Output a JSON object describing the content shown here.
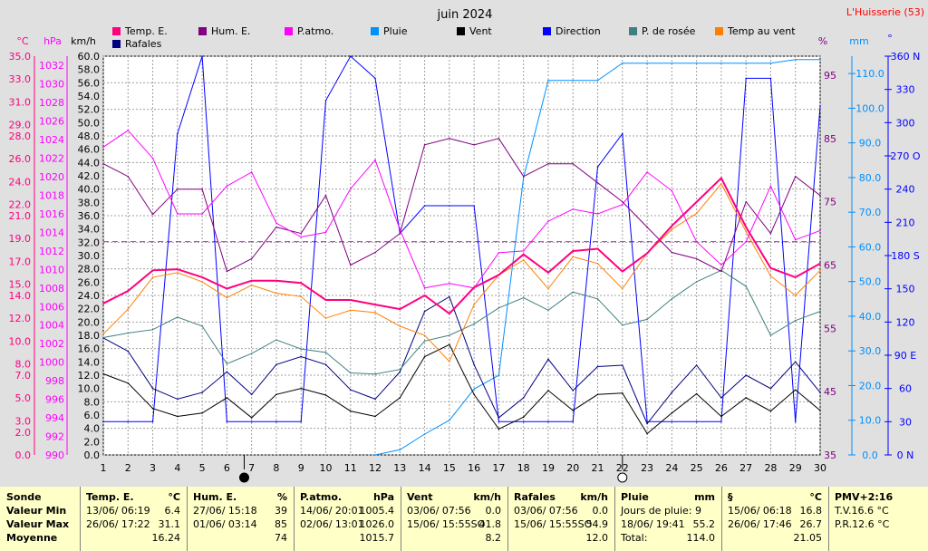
{
  "title": "juin 2024",
  "station": "L'Huisserie (53)",
  "colors": {
    "temp": "#ff0080",
    "hum": "#800080",
    "patmo": "#ff00ff",
    "pluie": "#0090ff",
    "vent": "#000000",
    "rafales": "#000080",
    "direction": "#0000ff",
    "rosee": "#408080",
    "tempvent": "#ff8000"
  },
  "legend": [
    {
      "key": "temp",
      "label": "Temp. E."
    },
    {
      "key": "hum",
      "label": "Hum. E."
    },
    {
      "key": "patmo",
      "label": "P.atmo."
    },
    {
      "key": "pluie",
      "label": "Pluie"
    },
    {
      "key": "vent",
      "label": "Vent"
    },
    {
      "key": "direction",
      "label": "Direction"
    },
    {
      "key": "rosee",
      "label": "P. de rosée"
    },
    {
      "key": "tempvent",
      "label": "Temp au vent"
    },
    {
      "key": "rafales",
      "label": "Rafales"
    }
  ],
  "chart_data": {
    "type": "line",
    "title": "juin 2024",
    "x": [
      1,
      2,
      3,
      4,
      5,
      6,
      7,
      8,
      9,
      10,
      11,
      12,
      13,
      14,
      15,
      16,
      17,
      18,
      19,
      20,
      21,
      22,
      23,
      24,
      25,
      26,
      27,
      28,
      29,
      30
    ],
    "axes": {
      "temp": {
        "unit": "°C",
        "range": [
          0,
          35
        ],
        "ticks": [
          "0.0",
          "2.0",
          "3.0",
          "5.0",
          "7.0",
          "8.0",
          "10.0",
          "12.0",
          "14.0",
          "15.0",
          "17.0",
          "19.0",
          "21.0",
          "22.0",
          "24.0",
          "26.0",
          "28.0",
          "29.0",
          "31.0",
          "33.0",
          "35.0"
        ]
      },
      "patmo": {
        "unit": "hPa",
        "range": [
          990,
          1033
        ],
        "ticks": [
          "990",
          "992",
          "994",
          "996",
          "998",
          "1000",
          "1002",
          "1004",
          "1006",
          "1008",
          "1010",
          "1012",
          "1014",
          "1016",
          "1018",
          "1020",
          "1022",
          "1024",
          "1026",
          "1028",
          "1030",
          "1032"
        ]
      },
      "vent": {
        "unit": "km/h",
        "range": [
          0,
          60
        ],
        "step": 2
      },
      "hum": {
        "unit": "%",
        "range": [
          35,
          98
        ],
        "ticks": [
          "35",
          "45",
          "55",
          "65",
          "75",
          "85",
          "95"
        ]
      },
      "pluie": {
        "unit": "mm",
        "range": [
          0,
          115
        ],
        "ticks": [
          "0.0",
          "10.0",
          "20.0",
          "30.0",
          "40.0",
          "50.0",
          "60.0",
          "70.0",
          "80.0",
          "90.0",
          "100.0",
          "110.0"
        ]
      },
      "direction": {
        "unit": "°",
        "range": [
          0,
          360
        ],
        "ticks": [
          "0 N",
          "30",
          "60",
          "90 E",
          "120",
          "150",
          "180 S",
          "210",
          "240",
          "270 O",
          "300",
          "330",
          "360 N"
        ]
      }
    },
    "moon_marks": [
      {
        "day": 6.7,
        "phase": "new"
      },
      {
        "day": 22,
        "phase": "full"
      }
    ],
    "series": [
      {
        "key": "temp",
        "name": "Temp. E.",
        "axis": "temp",
        "values": [
          13.3,
          14.4,
          16.2,
          16.3,
          15.6,
          14.6,
          15.3,
          15.3,
          15.1,
          13.6,
          13.6,
          13.2,
          12.8,
          14.0,
          12.4,
          14.7,
          15.8,
          17.6,
          16.0,
          17.9,
          18.1,
          16.1,
          17.7,
          20.1,
          22.2,
          24.3,
          20.0,
          16.4,
          15.6,
          16.8
        ]
      },
      {
        "key": "hum",
        "name": "Hum. E.",
        "axis": "hum",
        "values": [
          81,
          79,
          73,
          77,
          77,
          64,
          66,
          71,
          70,
          76,
          65,
          67,
          70,
          84,
          85,
          84,
          85,
          79,
          81,
          81,
          78,
          75,
          71,
          67,
          66,
          64,
          75,
          70,
          79,
          76
        ]
      },
      {
        "key": "patmo",
        "name": "P.atmo.",
        "axis": "patmo",
        "values": [
          1023.2,
          1025.0,
          1022.0,
          1016.0,
          1016.0,
          1019.0,
          1020.5,
          1015.0,
          1013.5,
          1014.0,
          1018.7,
          1021.8,
          1014.3,
          1008.0,
          1008.5,
          1008.0,
          1011.8,
          1012.0,
          1015.2,
          1016.5,
          1016.0,
          1017.0,
          1020.5,
          1018.5,
          1013.0,
          1010.5,
          1013.0,
          1019.0,
          1013.2,
          1014.2
        ]
      },
      {
        "key": "pluie",
        "name": "Pluie",
        "axis": "pluie",
        "values": [
          null,
          null,
          null,
          null,
          null,
          null,
          null,
          null,
          null,
          null,
          null,
          0.0,
          1.5,
          6.0,
          10.0,
          19.0,
          23.0,
          80.0,
          108.0,
          108.0,
          108.0,
          113.0,
          113.0,
          113.0,
          113.0,
          113.0,
          113.0,
          113.0,
          114.0,
          114.0
        ]
      },
      {
        "key": "vent",
        "name": "Vent",
        "axis": "vent",
        "values": [
          12.2,
          10.8,
          7.0,
          5.8,
          6.3,
          8.6,
          5.6,
          9.1,
          10.0,
          9.0,
          6.6,
          5.8,
          8.6,
          14.8,
          16.6,
          9.1,
          3.9,
          5.7,
          9.7,
          6.7,
          9.1,
          9.3,
          3.2,
          6.3,
          9.2,
          5.8,
          8.6,
          6.6,
          9.8,
          6.7
        ]
      },
      {
        "key": "rafales",
        "name": "Rafales",
        "axis": "vent",
        "values": [
          17.6,
          15.6,
          10.0,
          8.4,
          9.4,
          12.5,
          9.1,
          13.6,
          14.8,
          13.6,
          9.8,
          8.4,
          12.5,
          21.6,
          23.8,
          13.6,
          5.6,
          8.6,
          14.4,
          9.7,
          13.3,
          13.5,
          4.7,
          9.4,
          13.5,
          8.6,
          12.0,
          10.0,
          14.0,
          9.4
        ]
      },
      {
        "key": "direction",
        "name": "Direction",
        "axis": "direction",
        "values": [
          30,
          30,
          30,
          290,
          360,
          30,
          30,
          30,
          30,
          320,
          360,
          340,
          200,
          225,
          225,
          225,
          30,
          30,
          30,
          30,
          260,
          290,
          30,
          30,
          30,
          30,
          340,
          340,
          30,
          315
        ]
      },
      {
        "key": "rosee",
        "name": "P. de rosée",
        "axis": "temp",
        "values": [
          10.3,
          10.7,
          11.0,
          12.1,
          11.3,
          8.0,
          8.9,
          10.1,
          9.3,
          9.0,
          7.2,
          7.1,
          7.5,
          10.0,
          10.5,
          11.5,
          12.9,
          13.8,
          12.7,
          14.3,
          13.7,
          11.4,
          11.9,
          13.7,
          15.2,
          16.2,
          14.8,
          10.5,
          11.8,
          12.6
        ]
      },
      {
        "key": "tempvent",
        "name": "Temp au vent",
        "axis": "temp",
        "values": [
          10.6,
          12.8,
          15.6,
          16.0,
          15.2,
          13.8,
          14.9,
          14.2,
          13.9,
          12.0,
          12.7,
          12.5,
          11.3,
          10.5,
          8.2,
          13.2,
          15.8,
          17.1,
          14.6,
          17.4,
          16.8,
          14.6,
          17.7,
          19.8,
          21.2,
          23.8,
          19.6,
          15.7,
          14.0,
          16.2
        ]
      }
    ]
  },
  "stats": {
    "sonde": {
      "header": "Sonde",
      "rows": [
        "Valeur Min",
        "Valeur Max",
        "Moyenne"
      ]
    },
    "cols": [
      {
        "name": "Temp. E.",
        "unit": "°C",
        "rows": [
          {
            "l": "13/06/  06:19",
            "v": "6.4"
          },
          {
            "l": "26/06/  17:22",
            "v": "31.1"
          },
          {
            "l": "",
            "v": "16.24"
          }
        ]
      },
      {
        "name": "Hum. E.",
        "unit": "%",
        "rows": [
          {
            "l": "27/06/  15:18",
            "v": "39"
          },
          {
            "l": "01/06/  03:14",
            "v": "85"
          },
          {
            "l": "",
            "v": "74"
          }
        ]
      },
      {
        "name": "P.atmo.",
        "unit": "hPa",
        "rows": [
          {
            "l": "14/06/  20:01",
            "v": "1005.4"
          },
          {
            "l": "02/06/  13:01",
            "v": "1026.0"
          },
          {
            "l": "",
            "v": "1015.7"
          }
        ]
      },
      {
        "name": "Vent",
        "unit": "km/h",
        "rows": [
          {
            "l": "03/06/  07:56",
            "v": "0.0"
          },
          {
            "l": "15/06/  15:55SO",
            "v": "41.8"
          },
          {
            "l": "",
            "v": "8.2"
          }
        ]
      },
      {
        "name": "Rafales",
        "unit": "km/h",
        "rows": [
          {
            "l": "03/06/  07:56",
            "v": "0.0"
          },
          {
            "l": "15/06/  15:55SO",
            "v": "54.9"
          },
          {
            "l": "",
            "v": "12.0"
          }
        ]
      },
      {
        "name": "Pluie",
        "unit": "mm",
        "rows": [
          {
            "l": "Jours de pluie: 9",
            "v": ""
          },
          {
            "l": "18/06/  19:41",
            "v": "55.2"
          },
          {
            "l": "Total:",
            "v": "114.0"
          }
        ]
      },
      {
        "name": "§",
        "unit": "°C",
        "rows": [
          {
            "l": "15/06/  06:18",
            "v": "16.8"
          },
          {
            "l": "26/06/  17:46",
            "v": "26.7"
          },
          {
            "l": "",
            "v": "21.05"
          }
        ]
      },
      {
        "name": "PMV+2:16",
        "unit": "",
        "rows": [
          {
            "l": "T.V.16.6 °C",
            "v": ""
          },
          {
            "l": "P.R.12.6 °C",
            "v": ""
          },
          {
            "l": "",
            "v": ""
          }
        ]
      }
    ]
  }
}
